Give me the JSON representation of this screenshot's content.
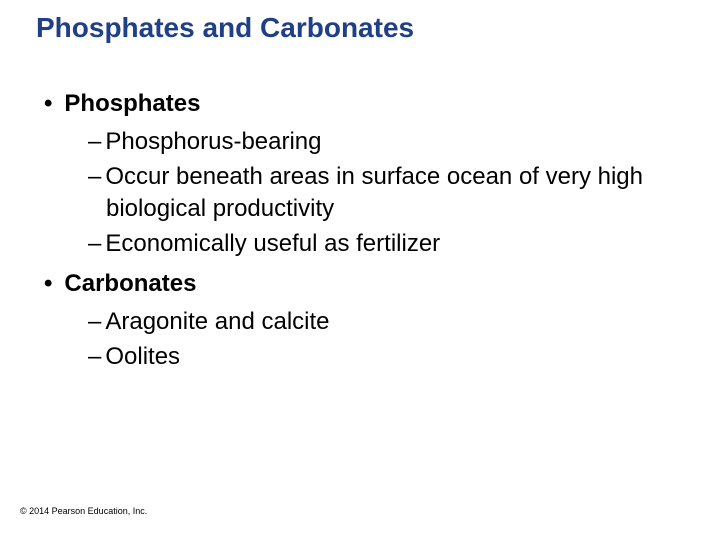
{
  "slide": {
    "title": "Phosphates and Carbonates",
    "title_color": "#1f3f87",
    "title_fontsize": 28,
    "body_fontsize": 24,
    "body_color": "#000000",
    "background_color": "#ffffff",
    "bullets": {
      "phosphates": {
        "heading": "Phosphates",
        "items": [
          "Phosphorus-bearing",
          "Occur beneath areas in surface ocean of very high biological productivity",
          "Economically useful as fertilizer"
        ]
      },
      "carbonates": {
        "heading": "Carbonates",
        "items": [
          "Aragonite and calcite",
          "Oolites"
        ]
      }
    },
    "copyright": "© 2014 Pearson Education, Inc."
  }
}
